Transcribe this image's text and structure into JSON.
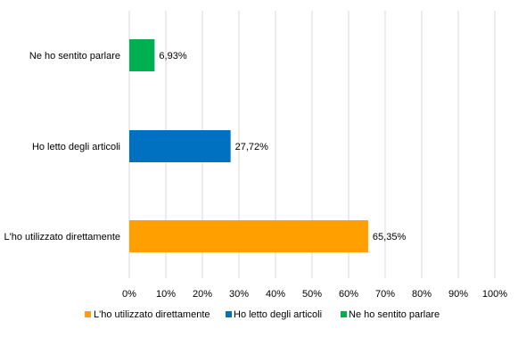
{
  "chart_data": {
    "type": "bar",
    "orientation": "horizontal",
    "categories": [
      "Ne ho sentito parlare",
      "Ho letto degli articoli",
      "L'ho utilizzato direttamente"
    ],
    "values": [
      6.93,
      27.72,
      65.35
    ],
    "value_labels": [
      "6,93%",
      "27,72%",
      "65,35%"
    ],
    "colors": [
      "#00B050",
      "#0070C0",
      "#FFA000"
    ],
    "xlim": [
      0,
      100
    ],
    "xticks": [
      0,
      10,
      20,
      30,
      40,
      50,
      60,
      70,
      80,
      90,
      100
    ],
    "xtick_labels": [
      "0%",
      "10%",
      "20%",
      "30%",
      "40%",
      "50%",
      "60%",
      "70%",
      "80%",
      "90%",
      "100%"
    ],
    "grid": true,
    "legend_position": "bottom",
    "legend": [
      {
        "label": "L'ho utilizzato direttamente",
        "color": "#FFA000"
      },
      {
        "label": "Ho letto degli articoli",
        "color": "#0070C0"
      },
      {
        "label": "Ne ho sentito parlare",
        "color": "#00B050"
      }
    ]
  }
}
